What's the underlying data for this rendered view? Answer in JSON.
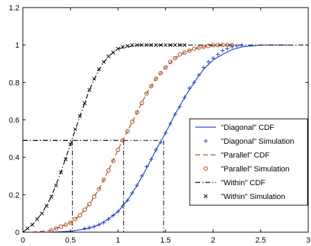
{
  "chart_data": {
    "type": "line",
    "title": "",
    "xlabel": "",
    "ylabel": "",
    "xlim": [
      0,
      3
    ],
    "ylim": [
      0,
      1.2
    ],
    "xticks": [
      0,
      0.5,
      1,
      1.5,
      2,
      2.5,
      3
    ],
    "xtick_labels": [
      "0",
      "0.5",
      "1",
      "1.5",
      "2",
      "2.5",
      "3"
    ],
    "yticks": [
      0,
      0.2,
      0.4,
      0.6,
      0.8,
      1,
      1.2
    ],
    "ytick_labels": [
      "0",
      "0.2",
      "0.4",
      "0.6",
      "0.8",
      "1",
      "1.2"
    ],
    "grid": false,
    "legend_position": "right",
    "series": [
      {
        "name": "\"Diagonal\" CDF",
        "style": "solid",
        "color": "#1f3fd6",
        "x": [
          0.3,
          0.5,
          0.7,
          0.8,
          0.9,
          1.0,
          1.1,
          1.2,
          1.3,
          1.4,
          1.5,
          1.6,
          1.7,
          1.8,
          1.9,
          2.0,
          2.1,
          2.2,
          2.3,
          2.4,
          2.5,
          2.6,
          2.8
        ],
        "y": [
          0.0,
          0.005,
          0.02,
          0.04,
          0.07,
          0.11,
          0.17,
          0.25,
          0.34,
          0.44,
          0.53,
          0.63,
          0.72,
          0.8,
          0.87,
          0.92,
          0.95,
          0.975,
          0.99,
          0.995,
          1.0,
          1.0,
          1.0
        ]
      },
      {
        "name": "\"Diagonal\" Simulation",
        "marker": "+",
        "color": "#1f3fd6",
        "x": [
          0.65,
          0.7,
          0.75,
          0.8,
          0.85,
          0.9,
          0.95,
          1.0,
          1.05,
          1.1,
          1.15,
          1.2,
          1.25,
          1.3,
          1.35,
          1.4,
          1.45,
          1.5,
          1.55,
          1.6,
          1.65,
          1.7,
          1.75,
          1.8,
          1.85,
          1.9,
          1.95,
          2.0,
          2.05,
          2.1,
          2.15,
          2.2,
          2.25,
          2.3
        ],
        "y": [
          0.02,
          0.025,
          0.03,
          0.04,
          0.05,
          0.07,
          0.09,
          0.11,
          0.14,
          0.17,
          0.21,
          0.25,
          0.3,
          0.35,
          0.39,
          0.44,
          0.48,
          0.53,
          0.58,
          0.63,
          0.67,
          0.72,
          0.77,
          0.8,
          0.84,
          0.88,
          0.91,
          0.93,
          0.95,
          0.97,
          0.98,
          0.99,
          0.995,
          1.0
        ]
      },
      {
        "name": "\"Parallel\" CDF",
        "style": "dashed",
        "color": "#b04a1a",
        "x": [
          0.1,
          0.3,
          0.4,
          0.5,
          0.6,
          0.7,
          0.8,
          0.9,
          1.0,
          1.1,
          1.2,
          1.3,
          1.4,
          1.5,
          1.6,
          1.7,
          1.8,
          1.9,
          2.0,
          2.1,
          2.2
        ],
        "y": [
          0.0,
          0.01,
          0.03,
          0.05,
          0.09,
          0.15,
          0.23,
          0.33,
          0.44,
          0.54,
          0.64,
          0.74,
          0.82,
          0.88,
          0.93,
          0.96,
          0.98,
          0.99,
          0.998,
          1.0,
          1.0
        ]
      },
      {
        "name": "\"Parallel\" Simulation",
        "marker": "o",
        "color": "#b04a1a",
        "x": [
          0.3,
          0.35,
          0.4,
          0.45,
          0.5,
          0.55,
          0.6,
          0.65,
          0.7,
          0.75,
          0.8,
          0.85,
          0.9,
          0.95,
          1.0,
          1.05,
          1.1,
          1.15,
          1.2,
          1.25,
          1.3,
          1.35,
          1.4,
          1.45,
          1.5,
          1.55,
          1.6,
          1.65,
          1.7,
          1.75,
          1.8,
          1.85,
          1.9,
          1.95,
          2.0,
          2.05,
          2.1,
          2.15,
          2.2
        ],
        "y": [
          0.01,
          0.02,
          0.03,
          0.04,
          0.05,
          0.07,
          0.09,
          0.12,
          0.15,
          0.19,
          0.23,
          0.28,
          0.33,
          0.38,
          0.44,
          0.49,
          0.54,
          0.59,
          0.64,
          0.69,
          0.74,
          0.78,
          0.82,
          0.85,
          0.88,
          0.91,
          0.93,
          0.95,
          0.96,
          0.97,
          0.98,
          0.985,
          0.99,
          0.995,
          1.0,
          1.0,
          1.0,
          1.0,
          1.0
        ]
      },
      {
        "name": "\"Within\" CDF",
        "style": "dashdot",
        "color": "#000000",
        "x": [
          0.0,
          0.1,
          0.2,
          0.3,
          0.4,
          0.5,
          0.6,
          0.7,
          0.8,
          0.9,
          1.0,
          1.1,
          1.2,
          1.3,
          1.5,
          3.0
        ],
        "y": [
          0.0,
          0.04,
          0.1,
          0.19,
          0.32,
          0.47,
          0.62,
          0.76,
          0.87,
          0.94,
          0.98,
          0.99,
          1.0,
          1.0,
          1.0,
          1.0
        ]
      },
      {
        "name": "\"Within\" Simulation",
        "marker": "x",
        "color": "#000000",
        "x": [
          0.05,
          0.1,
          0.15,
          0.2,
          0.25,
          0.3,
          0.35,
          0.4,
          0.45,
          0.5,
          0.55,
          0.6,
          0.65,
          0.7,
          0.75,
          0.8,
          0.85,
          0.9,
          0.95,
          1.0,
          1.05,
          1.1,
          1.15,
          1.2,
          1.25,
          1.3,
          1.35,
          1.4,
          1.45,
          1.5,
          1.55,
          1.6,
          1.65,
          1.7
        ],
        "y": [
          0.02,
          0.04,
          0.07,
          0.1,
          0.14,
          0.19,
          0.25,
          0.32,
          0.39,
          0.47,
          0.55,
          0.62,
          0.69,
          0.76,
          0.82,
          0.87,
          0.91,
          0.94,
          0.96,
          0.98,
          0.99,
          0.995,
          1.0,
          1.0,
          1.0,
          1.0,
          1.0,
          1.0,
          1.0,
          1.0,
          1.0,
          1.0,
          1.0,
          1.0
        ]
      }
    ],
    "reference_lines": [
      {
        "series": "\"Within\" CDF",
        "x": 0.52,
        "y": 0.49
      },
      {
        "series": "\"Parallel\" CDF",
        "x": 1.06,
        "y": 0.49
      },
      {
        "series": "\"Diagonal\" CDF",
        "x": 1.48,
        "y": 0.49
      }
    ]
  }
}
